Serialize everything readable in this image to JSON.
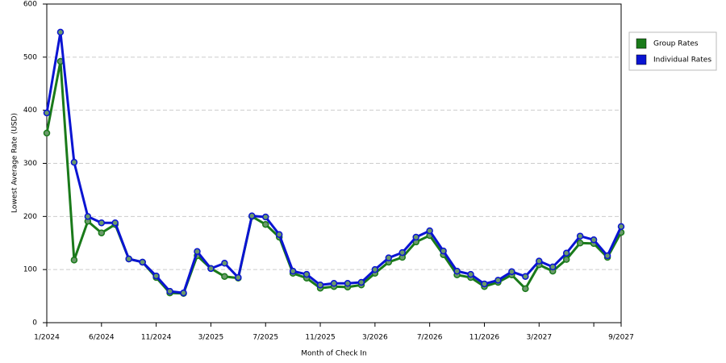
{
  "chart_data": {
    "type": "line",
    "x_label": "Month of Check In",
    "y_label": "Lowest Average Rate (USD)",
    "categories": [
      "1/2024",
      null,
      null,
      null,
      "6/2024",
      null,
      null,
      null,
      "11/2024",
      null,
      null,
      null,
      "3/2025",
      null,
      null,
      null,
      "7/2025",
      null,
      null,
      null,
      "11/2025",
      null,
      null,
      null,
      "3/2026",
      null,
      null,
      null,
      "7/2026",
      null,
      null,
      null,
      "11/2026",
      null,
      null,
      null,
      "3/2027",
      null,
      null,
      null,
      null,
      null,
      "9/2027"
    ],
    "series": [
      {
        "name": "Group Rates",
        "color": "#1a7a1a",
        "values": [
          357,
          492,
          118,
          191,
          169,
          185,
          120,
          114,
          85,
          56,
          55,
          126,
          102,
          87,
          84,
          200,
          185,
          161,
          93,
          84,
          65,
          68,
          67,
          71,
          93,
          114,
          123,
          152,
          164,
          128,
          90,
          85,
          68,
          76,
          90,
          64,
          109,
          97,
          119,
          150,
          149,
          123,
          170
        ]
      },
      {
        "name": "Individual Rates",
        "color": "#0a14d2",
        "values": [
          395,
          547,
          302,
          200,
          188,
          188,
          120,
          114,
          88,
          59,
          56,
          134,
          102,
          112,
          85,
          201,
          199,
          166,
          97,
          91,
          71,
          74,
          74,
          76,
          100,
          122,
          132,
          161,
          173,
          135,
          97,
          91,
          73,
          80,
          96,
          87,
          116,
          105,
          131,
          163,
          156,
          126,
          181
        ]
      }
    ],
    "ylim": [
      0,
      600
    ],
    "yticks": [
      0,
      100,
      200,
      300,
      400,
      500,
      600
    ],
    "grid": true
  }
}
